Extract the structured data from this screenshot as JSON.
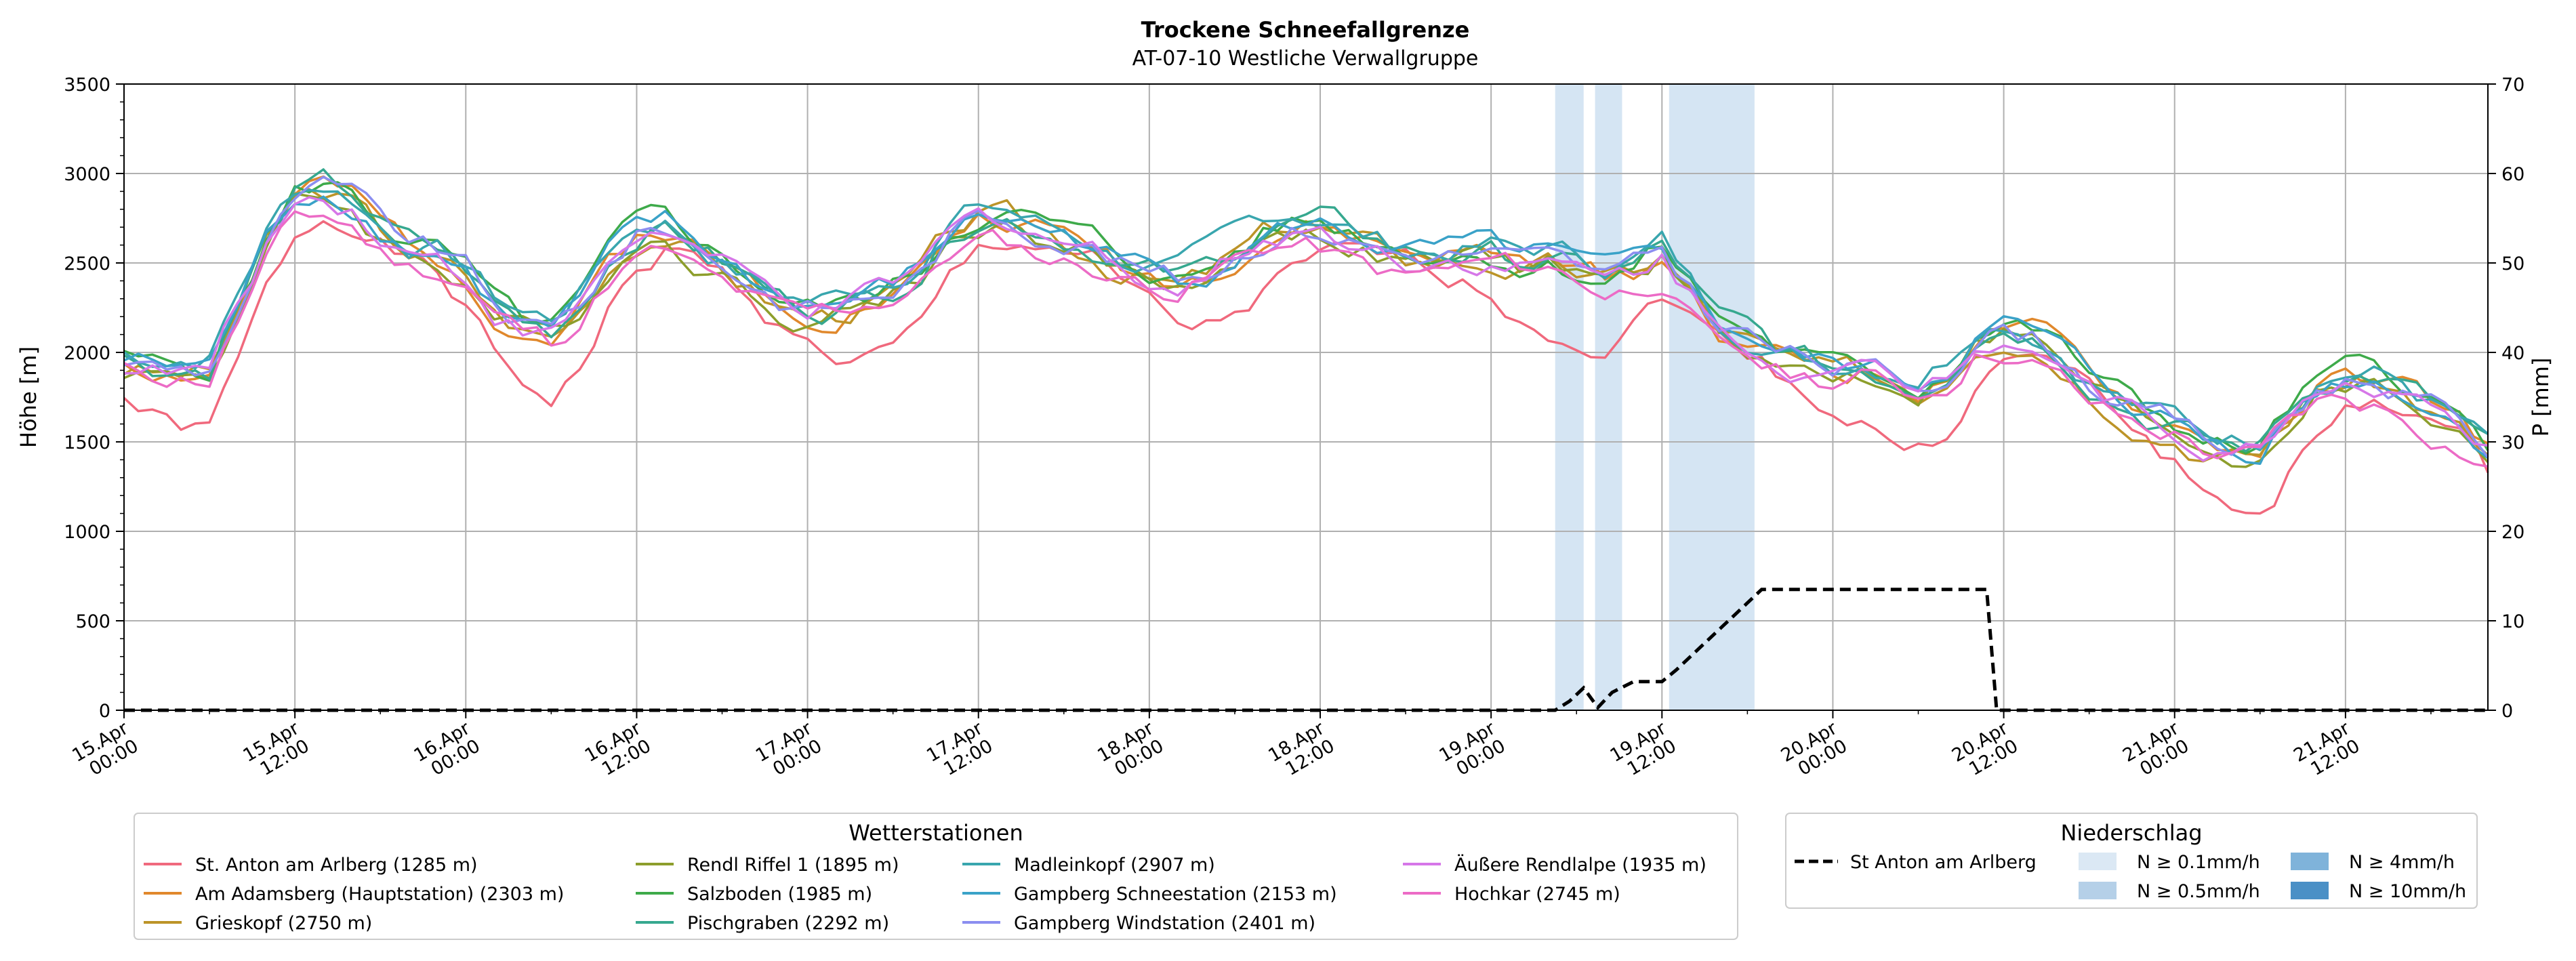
{
  "chart_data": {
    "type": "line",
    "title": "Trockene Schneefallgrenze",
    "subtitle": "AT-07-10 Westliche Verwallgruppe",
    "ylabel": "Höhe [m]",
    "y2label": "P [mm]",
    "ylim": [
      0,
      3500
    ],
    "y2lim": [
      0,
      70
    ],
    "yticks": [
      0,
      500,
      1000,
      1500,
      2000,
      2500,
      3000,
      3500
    ],
    "y2ticks": [
      0,
      10,
      20,
      30,
      40,
      50,
      60,
      70
    ],
    "xlim_hours": [
      0,
      166
    ],
    "xticks": [
      {
        "h": 0,
        "l1": "15.Apr",
        "l2": "00:00"
      },
      {
        "h": 12,
        "l1": "15.Apr",
        "l2": "12:00"
      },
      {
        "h": 24,
        "l1": "16.Apr",
        "l2": "00:00"
      },
      {
        "h": 36,
        "l1": "16.Apr",
        "l2": "12:00"
      },
      {
        "h": 48,
        "l1": "17.Apr",
        "l2": "00:00"
      },
      {
        "h": 60,
        "l1": "17.Apr",
        "l2": "12:00"
      },
      {
        "h": 72,
        "l1": "18.Apr",
        "l2": "00:00"
      },
      {
        "h": 84,
        "l1": "18.Apr",
        "l2": "12:00"
      },
      {
        "h": 96,
        "l1": "19.Apr",
        "l2": "00:00"
      },
      {
        "h": 108,
        "l1": "19.Apr",
        "l2": "12:00"
      },
      {
        "h": 120,
        "l1": "20.Apr",
        "l2": "00:00"
      },
      {
        "h": 132,
        "l1": "20.Apr",
        "l2": "12:00"
      },
      {
        "h": 144,
        "l1": "21.Apr",
        "l2": "00:00"
      },
      {
        "h": 156,
        "l1": "21.Apr",
        "l2": "12:00"
      }
    ],
    "precip_spans": [
      {
        "start": 100.5,
        "end": 102.5,
        "level": "N ≥ 0.1mm/h"
      },
      {
        "start": 103.3,
        "end": 105.2,
        "level": "N ≥ 0.1mm/h"
      },
      {
        "start": 108.5,
        "end": 114.5,
        "level": "N ≥ 0.1mm/h"
      }
    ],
    "precip_series": {
      "name": "St Anton am Arlberg",
      "x": [
        0,
        100.5,
        101.5,
        102.5,
        103.5,
        104.5,
        106,
        107,
        108,
        109,
        110,
        111,
        112,
        113,
        114,
        115,
        130,
        130.8,
        131.5,
        166
      ],
      "values": [
        0,
        0,
        1,
        2.5,
        0.3,
        2,
        3.2,
        3.2,
        3.2,
        4.5,
        6,
        7.5,
        9,
        10.5,
        12,
        13.5,
        13.5,
        13.5,
        0,
        0
      ]
    },
    "series": [
      {
        "name": "St. Anton am Arlberg (1285 m)",
        "color": "#f0697d",
        "base": -350,
        "seed": 1
      },
      {
        "name": "Am Adamsberg (Hauptstation) (2303 m)",
        "color": "#e0882c",
        "base": 0,
        "seed": 2
      },
      {
        "name": "Grieskopf (2750 m)",
        "color": "#bc9428",
        "base": -40,
        "seed": 3
      },
      {
        "name": "Rendl Riffel 1 (1895 m)",
        "color": "#8d9e2c",
        "base": -60,
        "seed": 4
      },
      {
        "name": "Salzboden (1985 m)",
        "color": "#3eaa4a",
        "base": 40,
        "seed": 5
      },
      {
        "name": "Pischgraben (2292 m)",
        "color": "#36a88f",
        "base": 30,
        "seed": 6
      },
      {
        "name": "Madleinkopf (2907 m)",
        "color": "#39a6ae",
        "base": 90,
        "seed": 7
      },
      {
        "name": "Gampberg Schneestation (2153 m)",
        "color": "#3aa2c8",
        "base": 20,
        "seed": 8
      },
      {
        "name": "Gampberg Windstation (2401 m)",
        "color": "#8b8ef0",
        "base": 10,
        "seed": 9
      },
      {
        "name": "Äußere Rendlalpe (1935 m)",
        "color": "#d677e8",
        "base": -20,
        "seed": 10
      },
      {
        "name": "Hochkar (2745 m)",
        "color": "#ec6bc6",
        "base": -150,
        "seed": 11
      }
    ],
    "reference_profile": {
      "hours": [
        0,
        3,
        6,
        8,
        10,
        12,
        14,
        16,
        18,
        20,
        22,
        24,
        26,
        28,
        30,
        32,
        34,
        36,
        38,
        40,
        42,
        44,
        46,
        48,
        50,
        52,
        54,
        56,
        58,
        60,
        62,
        64,
        66,
        68,
        70,
        72,
        74,
        76,
        78,
        80,
        82,
        84,
        86,
        88,
        90,
        92,
        94,
        96,
        98,
        100,
        102,
        104,
        106,
        108,
        110,
        112,
        114,
        116,
        118,
        120,
        122,
        124,
        126,
        128,
        130,
        132,
        134,
        136,
        138,
        140,
        142,
        144,
        146,
        148,
        150,
        152,
        154,
        156,
        158,
        160,
        162,
        164,
        166
      ],
      "values": [
        1950,
        1900,
        1900,
        2250,
        2600,
        2850,
        2900,
        2850,
        2700,
        2600,
        2550,
        2450,
        2250,
        2150,
        2100,
        2250,
        2500,
        2650,
        2700,
        2600,
        2500,
        2400,
        2300,
        2250,
        2250,
        2300,
        2350,
        2450,
        2650,
        2750,
        2750,
        2700,
        2650,
        2600,
        2500,
        2450,
        2400,
        2450,
        2550,
        2650,
        2700,
        2700,
        2650,
        2600,
        2550,
        2550,
        2550,
        2550,
        2500,
        2500,
        2450,
        2400,
        2450,
        2550,
        2350,
        2150,
        2100,
        2000,
        1950,
        1900,
        1900,
        1850,
        1800,
        1900,
        2100,
        2150,
        2100,
        2000,
        1850,
        1750,
        1650,
        1600,
        1500,
        1450,
        1450,
        1650,
        1800,
        1850,
        1850,
        1800,
        1700,
        1600,
        1450
      ]
    },
    "legends": {
      "stations_title": "Wetterstationen",
      "precip_title": "Niederschlag",
      "precip_line_label": "St Anton am Arlberg",
      "precip_levels": [
        {
          "label": "N ≥ 0.1mm/h",
          "color": "#dbe8f4"
        },
        {
          "label": "N ≥ 0.5mm/h",
          "color": "#b5d0e8"
        },
        {
          "label": "N ≥ 4mm/h",
          "color": "#7fb3da"
        },
        {
          "label": "N ≥ 10mm/h",
          "color": "#4a90c6"
        }
      ]
    }
  }
}
